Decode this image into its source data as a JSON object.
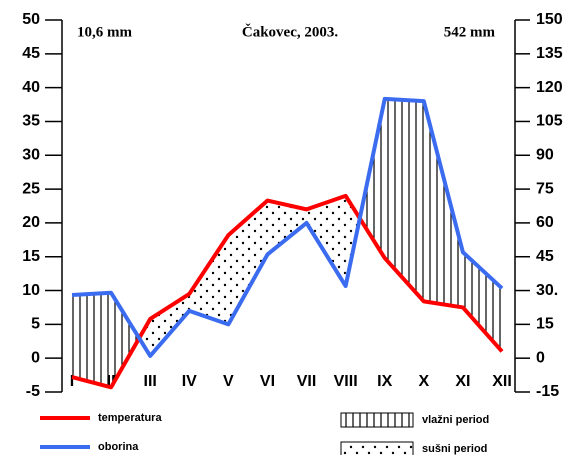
{
  "chart_data": {
    "type": "climate-diagram",
    "title": "Čakovec, 2003.",
    "annotations": [
      "10,6 mm",
      "542 mm"
    ],
    "categories": [
      "I",
      "II",
      "III",
      "IV",
      "V",
      "VI",
      "VII",
      "VIII",
      "IX",
      "X",
      "XI",
      "XII"
    ],
    "series": [
      {
        "name": "temperatura",
        "color": "#ff0000",
        "values": [
          -2.8,
          -4.3,
          5.8,
          9.5,
          18.2,
          23.3,
          22.0,
          24.0,
          14.8,
          8.4,
          7.5,
          1.0
        ]
      },
      {
        "name": "oborina",
        "color": "#3b6cf0",
        "axis": "y2",
        "values": [
          28,
          29,
          1,
          21,
          15,
          46,
          60,
          32,
          115,
          114,
          47,
          31
        ]
      }
    ],
    "areas": [
      {
        "name": "vlažni period",
        "pattern": "vertical-lines"
      },
      {
        "name": "sušni period",
        "pattern": "dots"
      }
    ],
    "ylim": [
      -5,
      50
    ],
    "yticks": [
      -5,
      0,
      5,
      10,
      15,
      20,
      25,
      30,
      35,
      40,
      45,
      50
    ],
    "y2lim": [
      -15,
      150
    ],
    "y2ticks": [
      -15,
      0,
      15,
      {
        "value": 30,
        "label": "30."
      },
      45,
      60,
      75,
      90,
      105,
      120,
      135,
      150
    ],
    "grid": false
  }
}
